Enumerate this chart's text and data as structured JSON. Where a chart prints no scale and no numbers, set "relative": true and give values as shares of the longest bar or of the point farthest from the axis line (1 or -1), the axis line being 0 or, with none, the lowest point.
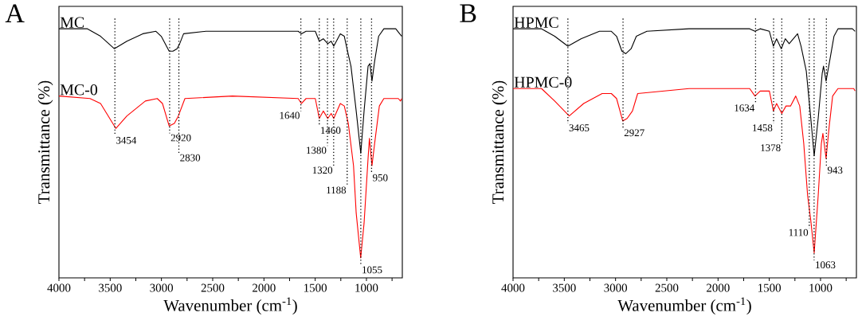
{
  "chart_data": [
    {
      "type": "line",
      "title": "A",
      "xlabel": "Wavenumber (cm$^{-1}$)",
      "ylabel": "Transmittance (%)",
      "relative": true,
      "tick_labels": "x",
      "xlim": [
        4000,
        650
      ],
      "xticks": [
        4000,
        {
          "value": 3750,
          "label": null
        },
        3500,
        {
          "value": 3250,
          "label": null
        },
        3000,
        {
          "value": 2750,
          "label": null
        },
        2500,
        {
          "value": 2250,
          "label": null
        },
        2000,
        {
          "value": 1750,
          "label": null
        },
        1500,
        {
          "value": 1250,
          "label": null
        },
        1000,
        {
          "value": 750,
          "label": null
        }
      ],
      "series": [
        {
          "name": "MC",
          "color": "#000000",
          "x": [
            4000,
            3722,
            3594,
            3460,
            3337,
            3182,
            3054,
            3002,
            2925,
            2887,
            2848,
            2822,
            2784,
            2565,
            2051,
            1666,
            1635,
            1589,
            1499,
            1460,
            1421,
            1377,
            1344,
            1319,
            1255,
            1216,
            1190,
            1151,
            1100,
            1055,
            1023,
            984,
            966,
            946,
            920,
            881,
            830,
            714,
            676,
            655
          ],
          "values": [
            1,
            1,
            0.97,
            0.92,
            0.95,
            0.98,
            0.99,
            0.97,
            0.91,
            0.91,
            0.92,
            0.94,
            0.98,
            0.99,
            0.99,
            0.99,
            0.98,
            0.99,
            0.99,
            0.95,
            0.96,
            0.94,
            0.95,
            0.93,
            0.98,
            0.97,
            0.92,
            0.85,
            0.67,
            0.5,
            0.67,
            0.85,
            0.86,
            0.79,
            0.87,
            0.97,
            1,
            1,
            0.98,
            0.97
          ]
        },
        {
          "name": "MC-0",
          "color": "#ff0000",
          "x": [
            4000,
            3697,
            3594,
            3445,
            3337,
            3157,
            3041,
            2990,
            2925,
            2874,
            2835,
            2771,
            2308,
            1666,
            1635,
            1589,
            1499,
            1460,
            1421,
            1377,
            1344,
            1319,
            1255,
            1216,
            1177,
            1126,
            1100,
            1056,
            1023,
            984,
            971,
            946,
            920,
            874,
            830,
            689,
            668,
            655
          ],
          "values": [
            0.73,
            0.72,
            0.7,
            0.6,
            0.65,
            0.71,
            0.72,
            0.7,
            0.61,
            0.62,
            0.65,
            0.72,
            0.73,
            0.72,
            0.7,
            0.72,
            0.72,
            0.64,
            0.67,
            0.64,
            0.66,
            0.64,
            0.7,
            0.69,
            0.62,
            0.45,
            0.26,
            0.08,
            0.22,
            0.48,
            0.56,
            0.45,
            0.54,
            0.69,
            0.72,
            0.72,
            0.71,
            0.72
          ]
        }
      ],
      "ref_lines": [
        {
          "axis": "x",
          "value": 3454,
          "label": "3454",
          "line_style": "dotted"
        },
        {
          "axis": "x",
          "value": 2920,
          "label": "2920",
          "line_style": "dotted"
        },
        {
          "axis": "x",
          "value": 2830,
          "label": "2830",
          "line_style": "dotted"
        },
        {
          "axis": "x",
          "value": 1640,
          "label": "1640",
          "line_style": "dotted"
        },
        {
          "axis": "x",
          "value": 1460,
          "label": "1460",
          "line_style": "dotted"
        },
        {
          "axis": "x",
          "value": 1380,
          "label": "1380",
          "line_style": "dotted"
        },
        {
          "axis": "x",
          "value": 1320,
          "label": "1320",
          "line_style": "dotted"
        },
        {
          "axis": "x",
          "value": 1188,
          "label": "1188",
          "line_style": "dotted"
        },
        {
          "axis": "x",
          "value": 1055,
          "label": "1055",
          "line_style": "dotted"
        },
        {
          "axis": "x",
          "value": 950,
          "label": "950",
          "line_style": "dotted"
        }
      ]
    },
    {
      "type": "line",
      "title": "B",
      "xlabel": "Wavenumber (cm$^{-1}$)",
      "ylabel": "Transmittance (%)",
      "relative": true,
      "tick_labels": "x",
      "xlim": [
        4000,
        650
      ],
      "xticks": [
        4000,
        {
          "value": 3750,
          "label": null
        },
        3500,
        {
          "value": 3250,
          "label": null
        },
        3000,
        {
          "value": 2750,
          "label": null
        },
        2500,
        {
          "value": 2250,
          "label": null
        },
        2000,
        {
          "value": 1750,
          "label": null
        },
        1500,
        {
          "value": 1250,
          "label": null
        },
        1000,
        {
          "value": 750,
          "label": null
        }
      ],
      "series": [
        {
          "name": "HPMC",
          "color": "#000000",
          "x": [
            4000,
            3722,
            3594,
            3465,
            3337,
            3157,
            3041,
            2990,
            2938,
            2900,
            2848,
            2797,
            2694,
            2283,
            1691,
            1640,
            1589,
            1499,
            1460,
            1429,
            1383,
            1344,
            1306,
            1224,
            1190,
            1139,
            1095,
            1062,
            1023,
            984,
            971,
            946,
            907,
            869,
            830,
            689,
            663
          ],
          "values": [
            1,
            1,
            0.97,
            0.93,
            0.96,
            0.99,
            0.99,
            0.97,
            0.91,
            0.9,
            0.92,
            0.97,
            0.99,
            1,
            1,
            0.99,
            1,
            0.99,
            0.93,
            0.96,
            0.92,
            0.96,
            0.94,
            0.98,
            0.93,
            0.83,
            0.64,
            0.49,
            0.64,
            0.82,
            0.85,
            0.79,
            0.88,
            0.97,
            1,
            1,
            0.99
          ]
        },
        {
          "name": "HPMC-0",
          "color": "#ff0000",
          "x": [
            4000,
            3722,
            3594,
            3452,
            3311,
            3131,
            3041,
            2990,
            2930,
            2887,
            2835,
            2784,
            2283,
            1691,
            1640,
            1589,
            1499,
            1460,
            1429,
            1378,
            1337,
            1293,
            1242,
            1203,
            1164,
            1126,
            1095,
            1062,
            1023,
            992,
            977,
            946,
            915,
            882,
            830,
            676,
            663
          ],
          "values": [
            0.76,
            0.76,
            0.71,
            0.65,
            0.7,
            0.74,
            0.74,
            0.72,
            0.63,
            0.64,
            0.67,
            0.74,
            0.76,
            0.76,
            0.73,
            0.75,
            0.75,
            0.67,
            0.7,
            0.66,
            0.69,
            0.69,
            0.73,
            0.69,
            0.54,
            0.33,
            0.23,
            0.1,
            0.33,
            0.54,
            0.58,
            0.48,
            0.61,
            0.73,
            0.76,
            0.76,
            0.75
          ]
        }
      ],
      "ref_lines": [
        {
          "axis": "x",
          "value": 3465,
          "label": "3465",
          "line_style": "dotted"
        },
        {
          "axis": "x",
          "value": 2927,
          "label": "2927",
          "line_style": "dotted"
        },
        {
          "axis": "x",
          "value": 1634,
          "label": "1634",
          "line_style": "dotted"
        },
        {
          "axis": "x",
          "value": 1458,
          "label": "1458",
          "line_style": "dotted"
        },
        {
          "axis": "x",
          "value": 1378,
          "label": "1378",
          "line_style": "dotted"
        },
        {
          "axis": "x",
          "value": 1110,
          "label": "1110",
          "line_style": "dotted"
        },
        {
          "axis": "x",
          "value": 1063,
          "label": "1063",
          "line_style": "dotted"
        },
        {
          "axis": "x",
          "value": 943,
          "label": "943",
          "line_style": "dotted"
        }
      ]
    }
  ]
}
